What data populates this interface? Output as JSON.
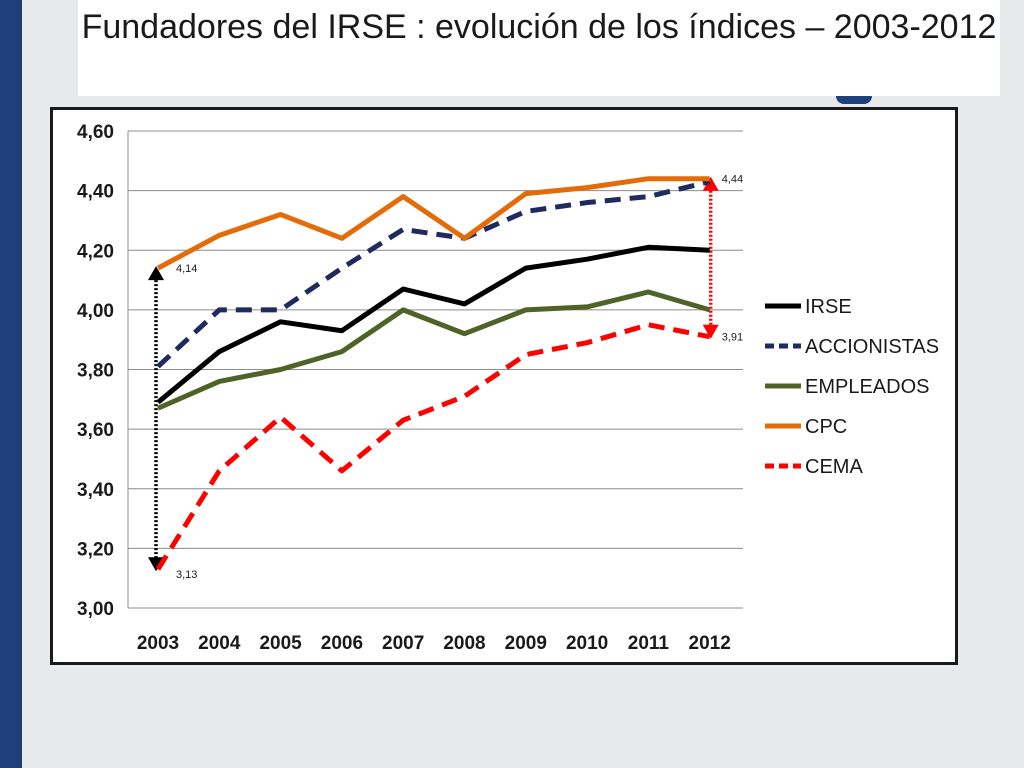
{
  "title": "Fundadores del IRSE : evolución de los índices – 2003-2012",
  "chart_data": {
    "type": "line",
    "title": "Fundadores del IRSE : evolución de los índices – 2003-2012",
    "categories": [
      "2003",
      "2004",
      "2005",
      "2006",
      "2007",
      "2008",
      "2009",
      "2010",
      "2011",
      "2012"
    ],
    "y_tick_labels": [
      "3,00",
      "3,20",
      "3,40",
      "3,60",
      "3,80",
      "4,00",
      "4,20",
      "4,40",
      "4,60"
    ],
    "ylim": [
      3.0,
      4.6
    ],
    "y_step": 0.2,
    "grid": true,
    "legend_position": "right",
    "series": [
      {
        "name": "IRSE",
        "color": "#000000",
        "dash": "solid",
        "values": [
          3.69,
          3.86,
          3.96,
          3.93,
          4.07,
          4.02,
          4.14,
          4.17,
          4.21,
          4.2
        ]
      },
      {
        "name": "ACCIONISTAS",
        "color": "#1f2a5e",
        "dash": "dashed",
        "values": [
          3.81,
          4.0,
          4.0,
          4.14,
          4.27,
          4.24,
          4.33,
          4.36,
          4.38,
          4.43
        ]
      },
      {
        "name": "EMPLEADOS",
        "color": "#4f6228",
        "dash": "solid",
        "values": [
          3.67,
          3.76,
          3.8,
          3.86,
          4.0,
          3.92,
          4.0,
          4.01,
          4.06,
          4.0
        ]
      },
      {
        "name": "CPC",
        "color": "#e36c09",
        "dash": "solid",
        "values": [
          4.14,
          4.25,
          4.32,
          4.24,
          4.38,
          4.24,
          4.39,
          4.41,
          4.44,
          4.44
        ]
      },
      {
        "name": "CEMA",
        "color": "#ff0000",
        "dash": "dashed",
        "values": [
          3.13,
          3.46,
          3.64,
          3.46,
          3.63,
          3.71,
          3.85,
          3.89,
          3.95,
          3.91
        ]
      }
    ],
    "annotations": [
      {
        "label": "4,14",
        "category": "2003",
        "value": 4.14
      },
      {
        "label": "3,13",
        "category": "2003",
        "value": 3.13
      },
      {
        "label": "4,44",
        "category": "2012",
        "value": 4.44
      },
      {
        "label": "3,91",
        "category": "2012",
        "value": 3.91
      }
    ],
    "ranges": [
      {
        "category": "2003",
        "from": 3.13,
        "to": 4.14,
        "color": "#000000"
      },
      {
        "category": "2012",
        "from": 3.91,
        "to": 4.44,
        "color": "#ff0000"
      }
    ]
  }
}
